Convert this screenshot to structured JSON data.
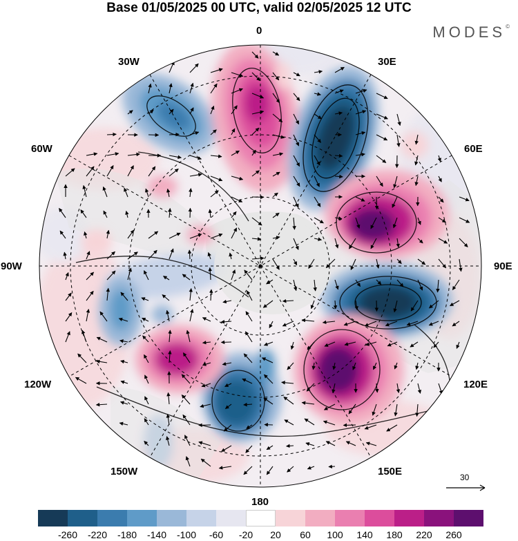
{
  "title": "Base 01/05/2025 00 UTC, valid 02/05/2025 12 UTC",
  "brand": "MODES",
  "brand_mark": "©",
  "lon_labels": {
    "n": "0",
    "ne30": "30E",
    "ne60": "60E",
    "e": "90E",
    "se120": "120E",
    "se150": "150E",
    "s": "180",
    "sw150": "150W",
    "sw120": "120W",
    "w": "90W",
    "nw60": "60W",
    "nw30": "30W"
  },
  "ref_vector": "30",
  "colorbar": {
    "ticks": [
      "-260",
      "-220",
      "-180",
      "-140",
      "-100",
      "-60",
      "-20",
      "20",
      "60",
      "100",
      "140",
      "180",
      "220",
      "260"
    ],
    "colors": [
      "#163a57",
      "#1f5f8a",
      "#3b7cae",
      "#5f9bc8",
      "#9ab8d8",
      "#c6d3e8",
      "#e6e6f0",
      "#ffffff",
      "#f7d4d8",
      "#f2adc1",
      "#ea7fb0",
      "#dc4d9c",
      "#bb1f88",
      "#8a127c",
      "#5d0f6e"
    ]
  },
  "map": {
    "land_color": "#e6e6e6",
    "blobs": [
      {
        "name": "low-atlantic-30w",
        "color": "#3b7cae"
      },
      {
        "name": "high-greenwich",
        "color": "#bb1f88"
      },
      {
        "name": "low-east-europe",
        "color": "#163a57"
      },
      {
        "name": "high-siberia-west",
        "color": "#5d0f6e"
      },
      {
        "name": "low-siberia-east",
        "color": "#163a57"
      },
      {
        "name": "high-pacific-west",
        "color": "#5d0f6e"
      },
      {
        "name": "low-pacific-date-line",
        "color": "#1f5f8a"
      },
      {
        "name": "high-northeast-pacific",
        "color": "#bb1f88"
      },
      {
        "name": "low-canada",
        "color": "#5f9bc8"
      }
    ]
  }
}
